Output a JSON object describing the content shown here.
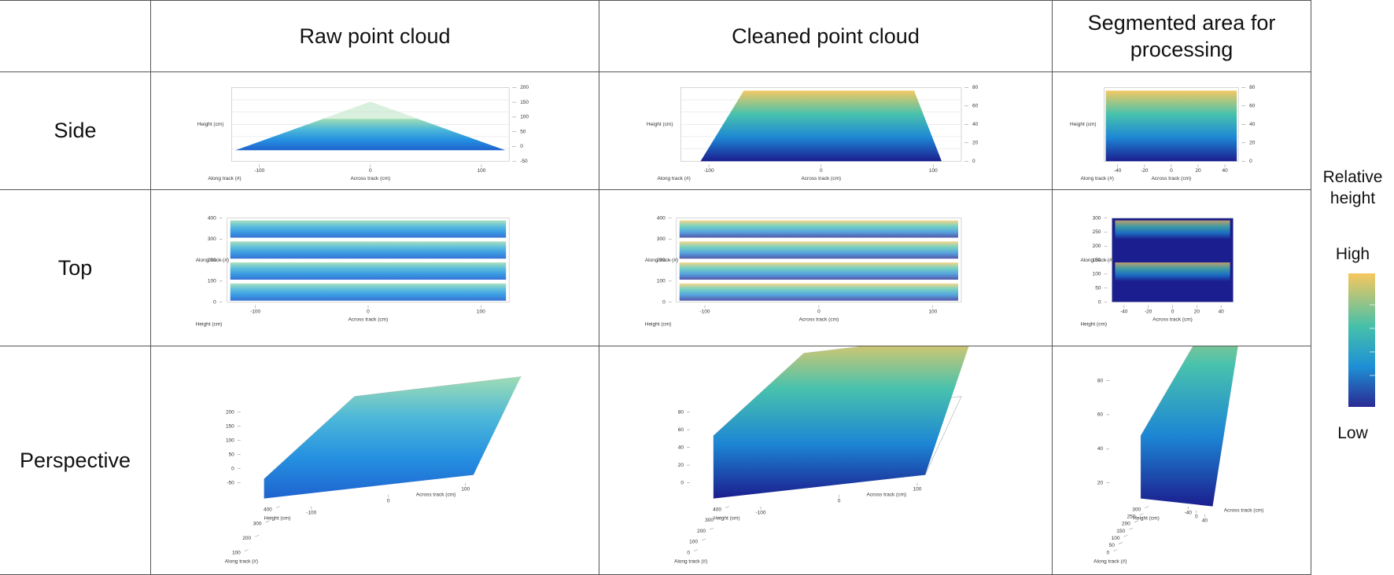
{
  "header": {
    "columns": [
      "Raw point cloud",
      "Cleaned point cloud",
      "Segmented area for processing"
    ]
  },
  "rows": [
    "Side",
    "Top",
    "Perspective"
  ],
  "legend": {
    "title": "Relative height",
    "high": "High",
    "low": "Low"
  },
  "panels": [
    [
      {
        "kind": "side",
        "variant": "raw",
        "yticks": [
          -50,
          0,
          50,
          100,
          150,
          200
        ],
        "xticks": [
          -100,
          0,
          100
        ],
        "zlabel": "Height (cm)",
        "xlabel": "Across track (cm)",
        "ylabel": "Along track (#)"
      },
      {
        "kind": "side",
        "variant": "cleaned",
        "yticks": [
          0,
          20,
          40,
          60,
          80
        ],
        "xticks": [
          -100,
          0,
          100
        ],
        "zlabel": "Height (cm)",
        "xlabel": "Across track (cm)",
        "ylabel": "Along track (#)"
      },
      {
        "kind": "side",
        "variant": "segmented",
        "yticks": [
          0,
          20,
          40,
          60,
          80
        ],
        "xticks": [
          -40,
          -20,
          0,
          20,
          40
        ],
        "zlabel": "Height (cm)",
        "xlabel": "Across track (cm)",
        "ylabel": "Along track (#)"
      }
    ],
    [
      {
        "kind": "top",
        "variant": "raw",
        "yticks": [
          0,
          100,
          200,
          300,
          400
        ],
        "xticks": [
          -100,
          0,
          100
        ],
        "zlabel": "Height (cm)",
        "xlabel": "Across track (cm)",
        "ylabel": "Along track (#)"
      },
      {
        "kind": "top",
        "variant": "cleaned",
        "yticks": [
          0,
          100,
          200,
          300,
          400
        ],
        "xticks": [
          -100,
          0,
          100
        ],
        "zlabel": "Height (cm)",
        "xlabel": "Across track (cm)",
        "ylabel": "Along track (#)"
      },
      {
        "kind": "top",
        "variant": "segmented",
        "yticks": [
          0,
          50,
          100,
          150,
          200,
          250,
          300
        ],
        "xticks": [
          -40,
          -20,
          0,
          20,
          40
        ],
        "zlabel": "Height (cm)",
        "xlabel": "Across track (cm)",
        "ylabel": "Along track (#)"
      }
    ],
    [
      {
        "kind": "perspective",
        "variant": "raw",
        "yticks": [
          -50,
          0,
          50,
          100,
          150,
          200
        ],
        "xticks": [
          -100,
          0,
          100
        ],
        "alongticks": [
          100,
          200,
          300,
          400
        ],
        "zlabel": "Height (cm)",
        "xlabel": "Across track (cm)",
        "ylabel": "Along track (#)"
      },
      {
        "kind": "perspective",
        "variant": "cleaned",
        "yticks": [
          0,
          20,
          40,
          60,
          80
        ],
        "xticks": [
          -100,
          0,
          100
        ],
        "alongticks": [
          0,
          100,
          200,
          300,
          400
        ],
        "zlabel": "Height (cm)",
        "xlabel": "Across track (cm)",
        "ylabel": "Along track (#)"
      },
      {
        "kind": "perspective",
        "variant": "segmented",
        "yticks": [
          20,
          40,
          60,
          80
        ],
        "xticks": [
          -40,
          0,
          40
        ],
        "alongticks": [
          0,
          50,
          100,
          150,
          200,
          250,
          300
        ],
        "zlabel": "Height (cm)",
        "xlabel": "Across track (cm)",
        "ylabel": "Along track (#)"
      }
    ]
  ]
}
